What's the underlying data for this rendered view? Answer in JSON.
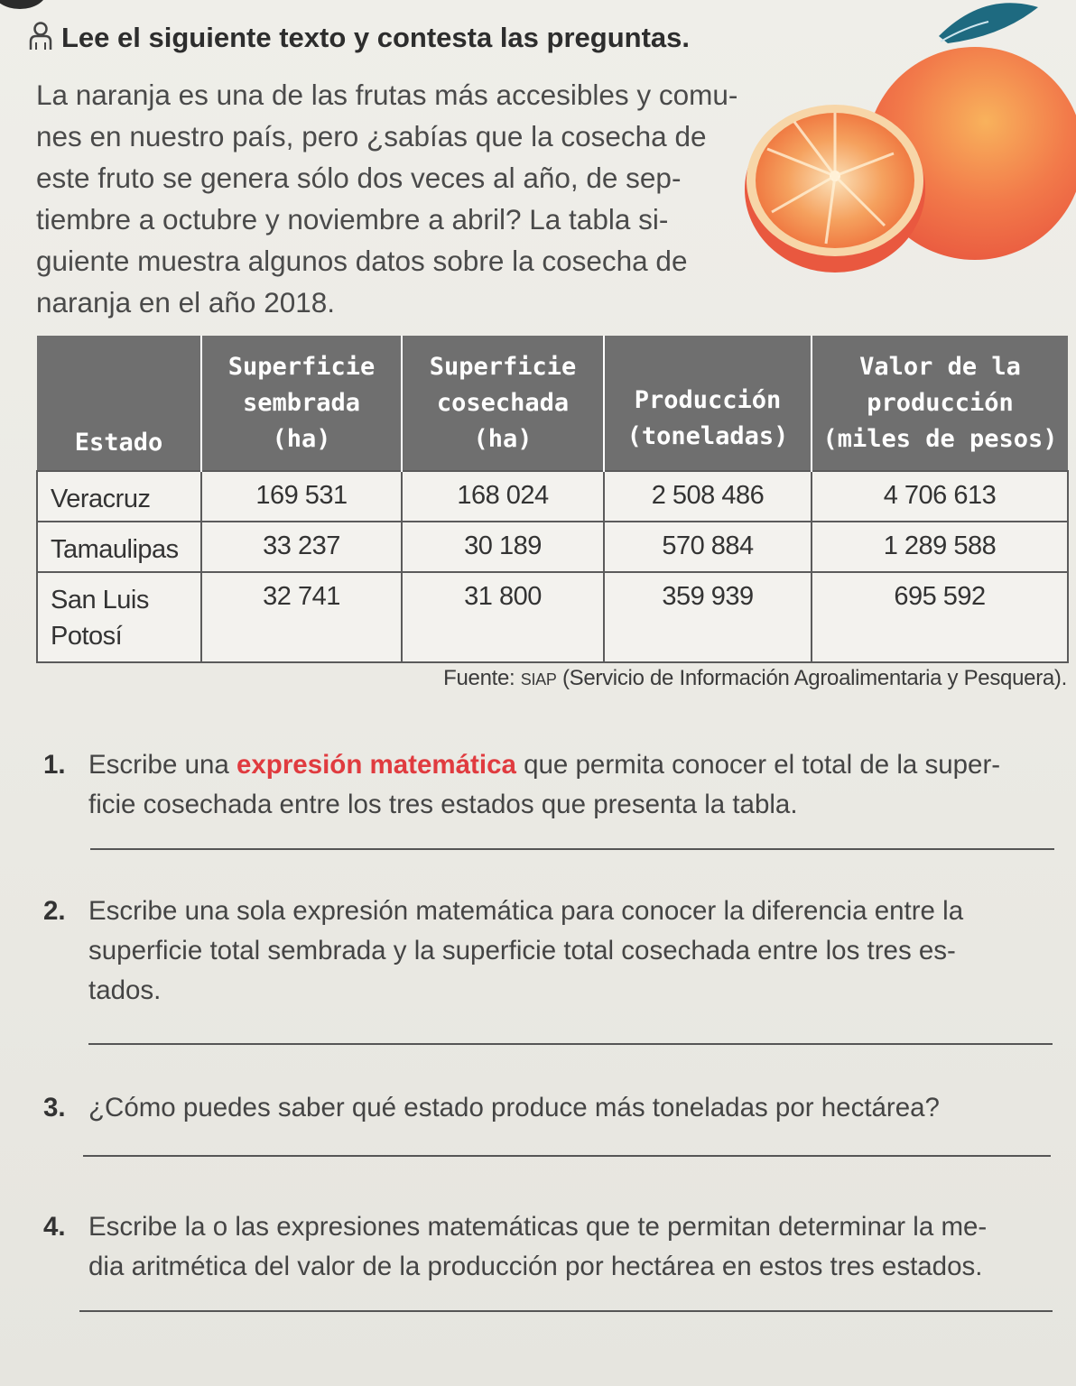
{
  "heading": "Lee el siguiente texto y contesta las preguntas.",
  "intro_lines": [
    "La naranja es una de las frutas más accesibles y comu-",
    "nes en nuestro país, pero ¿sabías que la cosecha de",
    "este fruto se genera sólo dos veces al año, de sep-",
    "tiembre a octubre y noviembre a abril? La tabla si-",
    "guiente muestra algunos datos sobre la cosecha de",
    "naranja en el año 2018."
  ],
  "table": {
    "headers": [
      {
        "id": "estado",
        "text": "Estado"
      },
      {
        "id": "sembrada",
        "lines": [
          "Superficie",
          "sembrada",
          "(ha)"
        ]
      },
      {
        "id": "cosechada",
        "lines": [
          "Superficie",
          "cosechada",
          "(ha)"
        ]
      },
      {
        "id": "produccion",
        "lines": [
          "Producción",
          "(toneladas)"
        ]
      },
      {
        "id": "valor",
        "lines": [
          "Valor de la",
          "producción",
          "(miles de pesos)"
        ]
      }
    ],
    "rows": [
      {
        "estado": "Veracruz",
        "sembrada": "169 531",
        "cosechada": "168 024",
        "produccion": "2 508 486",
        "valor": "4 706 613"
      },
      {
        "estado": "Tamaulipas",
        "sembrada": "33 237",
        "cosechada": "30 189",
        "produccion": "570 884",
        "valor": "1 289 588"
      },
      {
        "estado_lines": [
          "San Luis",
          "Potosí"
        ],
        "sembrada": "32 741",
        "cosechada": "31 800",
        "produccion": "359 939",
        "valor": "695 592"
      }
    ]
  },
  "source": {
    "prefix": "Fuente: ",
    "acronym": "SIAP",
    "rest": " (Servicio de Información Agroalimentaria y Pesquera)."
  },
  "questions": [
    {
      "num": "1.",
      "before": "Escribe una ",
      "highlight": "expresión matemática",
      "after": " que permita conocer el total de la super-",
      "line2": "ficie cosechada entre los tres estados que presenta la tabla."
    },
    {
      "num": "2.",
      "line1": "Escribe una sola expresión matemática para conocer la diferencia entre la",
      "line2": "superficie total sembrada y la superficie total cosechada entre los tres es-",
      "line3": "tados."
    },
    {
      "num": "3.",
      "line1": "¿Cómo puedes saber qué estado produce más toneladas por hectárea?"
    },
    {
      "num": "4.",
      "line1": "Escribe la o las expresiones matemáticas que te permitan determinar la me-",
      "line2": "dia aritmética del valor de la producción por hectárea en estos tres estados."
    }
  ],
  "colors": {
    "highlight": "#e03b3f",
    "header_bg": "#6f6f6f",
    "orange": "#f0704a",
    "leaf": "#1e6a80"
  },
  "icons": {
    "heading_icon": "person-icon",
    "illustration": "orange-illustration"
  }
}
